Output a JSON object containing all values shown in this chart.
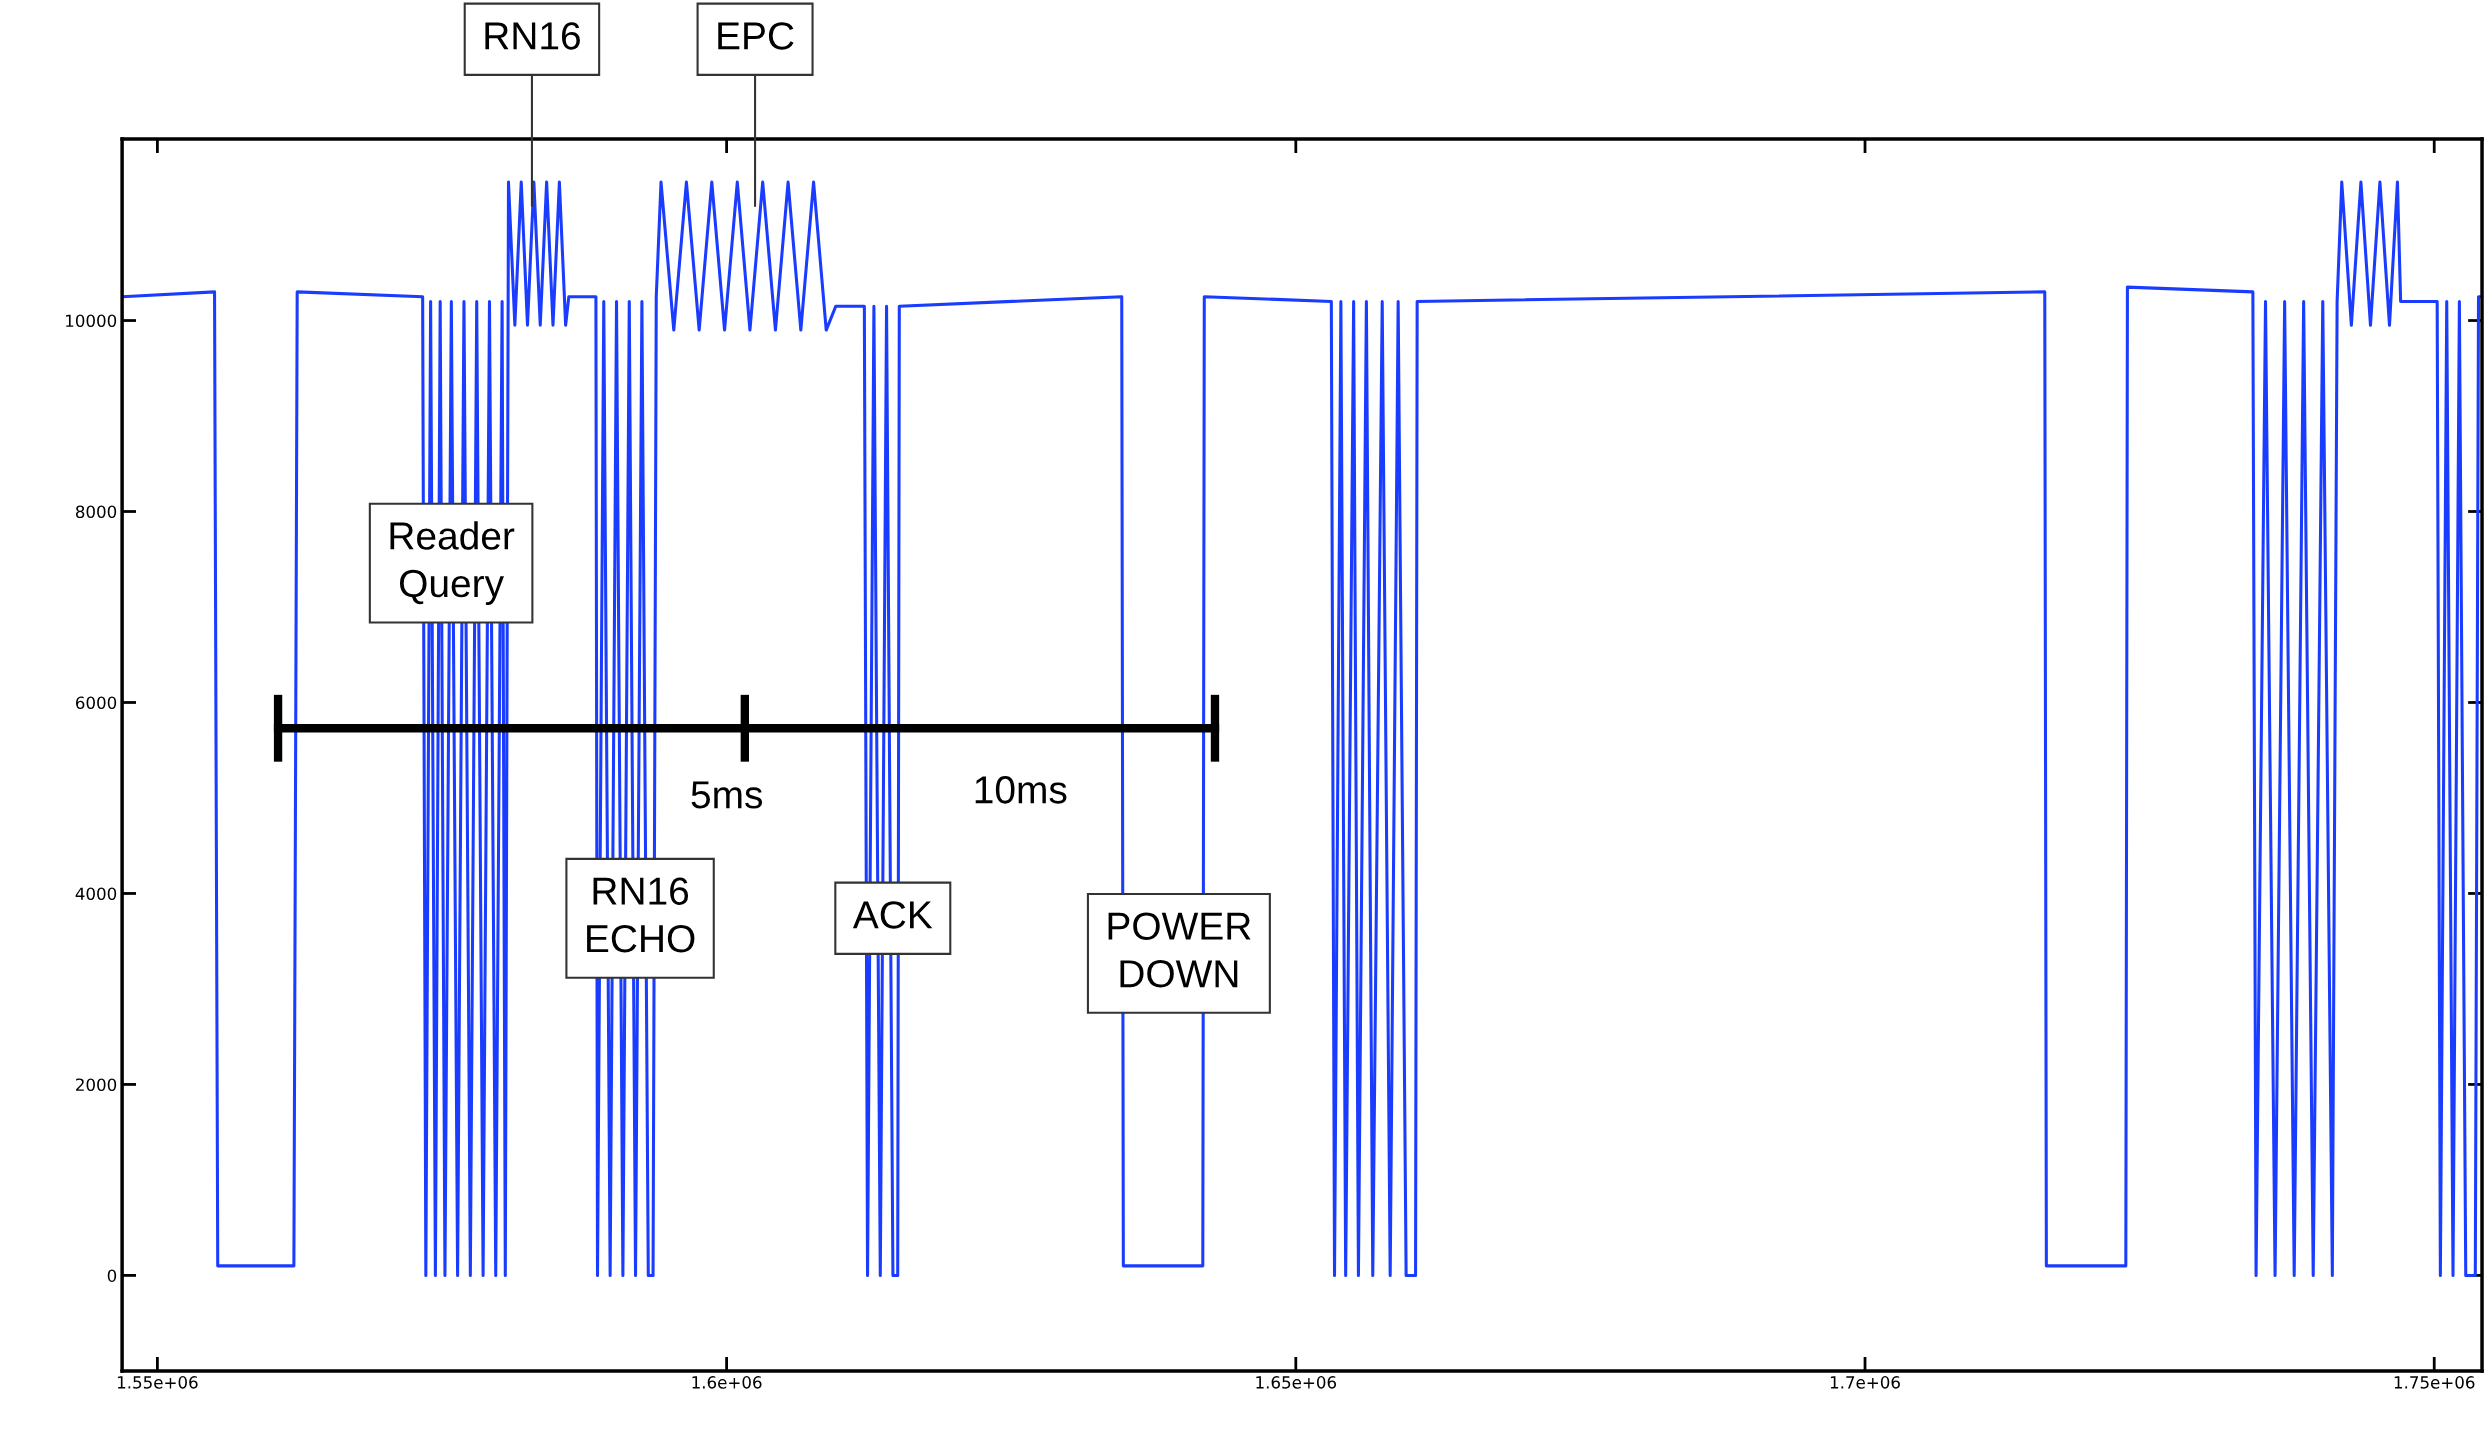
{
  "chart_data": {
    "type": "line",
    "xlim": [
      1546900,
      1754200
    ],
    "ylim": [
      -1000,
      11900
    ],
    "xticks": [
      {
        "value": 1550000,
        "label": "1.55e+06"
      },
      {
        "value": 1600000,
        "label": "1.6e+06"
      },
      {
        "value": 1650000,
        "label": "1.65e+06"
      },
      {
        "value": 1700000,
        "label": "1.7e+06"
      },
      {
        "value": 1750000,
        "label": "1.75e+06"
      }
    ],
    "yticks": [
      0,
      2000,
      4000,
      6000,
      8000,
      10000
    ],
    "grid": false,
    "legend": false,
    "series": [
      {
        "color": "#1a3cff",
        "x": [
          1546930,
          1555020,
          1555300,
          1561990,
          1562280,
          1573300,
          1573580,
          1574000,
          1574420,
          1574840,
          1575260,
          1575820,
          1576370,
          1576930,
          1577490,
          1578050,
          1578610,
          1579170,
          1579720,
          1580280,
          1580560,
          1580840,
          1581400,
          1581960,
          1582510,
          1583070,
          1583630,
          1584190,
          1584750,
          1585310,
          1585860,
          1586140,
          1588520,
          1588660,
          1589210,
          1589770,
          1590330,
          1590890,
          1591450,
          1592000,
          1592560,
          1593120,
          1593540,
          1593820,
          1594240,
          1595360,
          1596470,
          1597590,
          1598700,
          1599820,
          1600940,
          1602050,
          1603170,
          1604290,
          1605400,
          1606520,
          1607640,
          1608750,
          1609590,
          1612100,
          1612380,
          1612940,
          1613500,
          1614050,
          1614610,
          1615030,
          1615170,
          1634710,
          1634850,
          1641830,
          1641960,
          1653120,
          1653400,
          1653960,
          1654380,
          1655080,
          1655500,
          1656200,
          1656760,
          1657590,
          1658290,
          1658990,
          1659690,
          1660520,
          1660660,
          1715790,
          1715930,
          1722910,
          1723050,
          1734070,
          1734350,
          1735180,
          1736020,
          1736860,
          1737700,
          1738530,
          1739370,
          1740210,
          1741050,
          1741470,
          1741880,
          1742720,
          1743560,
          1744400,
          1745230,
          1746070,
          1746770,
          1747050,
          1750260,
          1750540,
          1751100,
          1751650,
          1752210,
          1752770,
          1753610,
          1753890,
          1754170
        ],
        "values": [
          10250,
          10300,
          100,
          100,
          10300,
          10250,
          0,
          10200,
          0,
          10200,
          0,
          10200,
          0,
          10200,
          0,
          10200,
          0,
          10200,
          0,
          10200,
          0,
          11450,
          9950,
          11450,
          9950,
          11450,
          9950,
          11450,
          9950,
          11450,
          9950,
          10250,
          10250,
          0,
          10200,
          0,
          10200,
          0,
          10200,
          0,
          10200,
          0,
          0,
          10250,
          11450,
          9900,
          11450,
          9900,
          11450,
          9900,
          11450,
          9900,
          11450,
          9900,
          11450,
          9900,
          11450,
          9900,
          10150,
          10150,
          0,
          10150,
          0,
          10150,
          0,
          0,
          10150,
          10250,
          100,
          100,
          10250,
          10200,
          0,
          10200,
          0,
          10200,
          0,
          10200,
          0,
          10200,
          0,
          10200,
          0,
          0,
          10200,
          10300,
          100,
          100,
          10350,
          10300,
          0,
          10200,
          0,
          10200,
          0,
          10200,
          0,
          10200,
          0,
          10200,
          11450,
          9950,
          11450,
          9950,
          11450,
          9950,
          11450,
          10200,
          10200,
          0,
          10200,
          0,
          10200,
          0,
          0,
          10250,
          10250
        ]
      },
      {
        "color": "#000000",
        "x": [
          1560600,
          1601600,
          1642900
        ],
        "values": [
          5730,
          5730,
          5730
        ],
        "errors": [
          350,
          350,
          350
        ]
      }
    ],
    "annotations": [
      {
        "text": "RN16",
        "x": 1582900,
        "y": 11200
      },
      {
        "text": "EPC",
        "x": 1602500,
        "y": 11200
      },
      {
        "text": "Reader\nQuery",
        "x": 1575800,
        "y": 7460
      },
      {
        "text": "RN16\nECHO",
        "x": 1592400,
        "y": 3740
      },
      {
        "text": "ACK",
        "x": 1614600,
        "y": 3740
      },
      "POWER\nDOWN",
      "5ms",
      "10ms"
    ]
  }
}
